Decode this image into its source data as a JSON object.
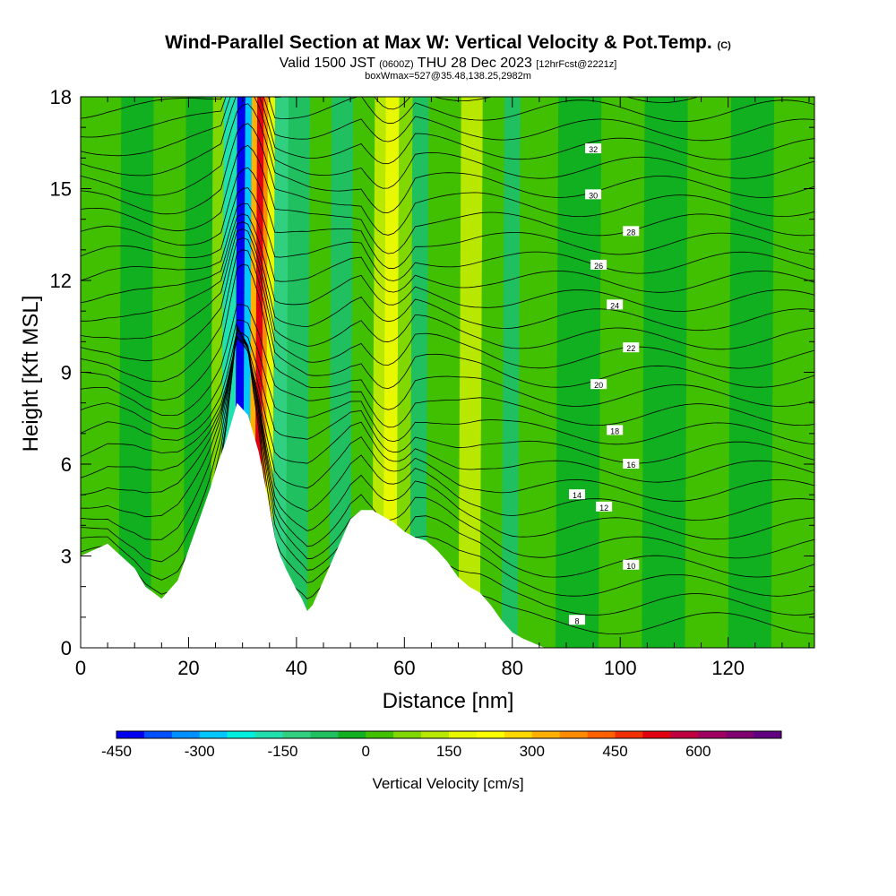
{
  "titles": {
    "main": "Wind-Parallel Section at Max W: Vertical Velocity & Pot.Temp.",
    "main_mark": "(C)",
    "valid_pre": "Valid 1500 JST",
    "valid_utc": "(0600Z)",
    "valid_post": "THU 28 Dec 2023",
    "valid_fcst": "[12hrFcst@2221z]",
    "box": "boxWmax=527@35.48,138.25,2982m"
  },
  "chart_data": {
    "type": "heatmap",
    "xlabel": "Distance [nm]",
    "ylabel": "Height [Kft MSL]",
    "xlim": [
      0,
      136
    ],
    "ylim": [
      0,
      18
    ],
    "xticks": [
      "0",
      "20",
      "40",
      "60",
      "80",
      "100",
      "120"
    ],
    "yticks": [
      "0",
      "3",
      "6",
      "9",
      "12",
      "15",
      "18"
    ],
    "grid": false,
    "legend": "bottom",
    "colorbar": {
      "label": "Vertical Velocity [cm/s]",
      "tick_labels": [
        "-450",
        "-300",
        "-150",
        "0",
        "150",
        "300",
        "450",
        "600"
      ],
      "colors": [
        "#0000f0",
        "#0050ff",
        "#0090ff",
        "#00c8ff",
        "#00f0e0",
        "#20e0b0",
        "#30d080",
        "#20c060",
        "#10b020",
        "#40c000",
        "#80d800",
        "#b8e800",
        "#e8f800",
        "#ffff00",
        "#ffd800",
        "#ffb000",
        "#ff8c00",
        "#ff6000",
        "#f03000",
        "#e00010",
        "#c00040",
        "#a00060",
        "#800070",
        "#600080"
      ]
    },
    "potential_temperature_labels": [
      "32",
      "30",
      "28",
      "26",
      "24",
      "22",
      "20",
      "18",
      "16",
      "14",
      "12",
      "10",
      "8"
    ],
    "terrain_kft": {
      "x": [
        0,
        5,
        10,
        12,
        15,
        18,
        20,
        22,
        24,
        25,
        27,
        29,
        31,
        33,
        35,
        36,
        37,
        38,
        40,
        41,
        42,
        43,
        44,
        46,
        48,
        50,
        52,
        54,
        56,
        58,
        60,
        62,
        64,
        66,
        68,
        70,
        72,
        74,
        76,
        78,
        80,
        82,
        84,
        86
      ],
      "y": [
        3.0,
        3.4,
        2.6,
        2.0,
        1.6,
        2.2,
        3.2,
        4.2,
        5.2,
        5.8,
        6.8,
        8.0,
        7.6,
        6.4,
        4.6,
        3.6,
        3.0,
        2.6,
        1.9,
        1.6,
        1.2,
        1.4,
        1.8,
        2.6,
        3.4,
        4.2,
        4.5,
        4.5,
        4.3,
        4.1,
        3.8,
        3.6,
        3.5,
        3.2,
        2.8,
        2.3,
        2.0,
        1.8,
        1.4,
        0.9,
        0.5,
        0.3,
        0.15,
        0.0
      ]
    },
    "shading_bands": [
      {
        "x0": 0,
        "x1": 7,
        "w": 10
      },
      {
        "x0": 7,
        "x1": 13,
        "w": -30
      },
      {
        "x0": 13,
        "x1": 19,
        "w": 20
      },
      {
        "x0": 19,
        "x1": 24,
        "w": -40
      },
      {
        "x0": 24,
        "x1": 26,
        "w": 60
      },
      {
        "x0": 26,
        "x1": 28.5,
        "w": -180
      },
      {
        "x0": 28.5,
        "x1": 30,
        "w": -420
      },
      {
        "x0": 30,
        "x1": 31.2,
        "w": -300
      },
      {
        "x0": 31.2,
        "x1": 32.2,
        "w": 300
      },
      {
        "x0": 32.2,
        "x1": 33.4,
        "w": 500
      },
      {
        "x0": 33.4,
        "x1": 34.2,
        "w": 380
      },
      {
        "x0": 34.2,
        "x1": 35.5,
        "w": 150
      },
      {
        "x0": 35.5,
        "x1": 38,
        "w": -150
      },
      {
        "x0": 38,
        "x1": 42,
        "w": -60
      },
      {
        "x0": 42,
        "x1": 46,
        "w": 20
      },
      {
        "x0": 46,
        "x1": 50,
        "w": -70
      },
      {
        "x0": 50,
        "x1": 54,
        "w": 40
      },
      {
        "x0": 54,
        "x1": 56,
        "w": 100
      },
      {
        "x0": 56,
        "x1": 58.5,
        "w": 150
      },
      {
        "x0": 58.5,
        "x1": 61,
        "w": 70
      },
      {
        "x0": 61,
        "x1": 64,
        "w": -70
      },
      {
        "x0": 64,
        "x1": 70,
        "w": 40
      },
      {
        "x0": 70,
        "x1": 74,
        "w": 110
      },
      {
        "x0": 74,
        "x1": 78,
        "w": 20
      },
      {
        "x0": 78,
        "x1": 81,
        "w": -70
      },
      {
        "x0": 81,
        "x1": 88,
        "w": 30
      },
      {
        "x0": 88,
        "x1": 96,
        "w": -20
      },
      {
        "x0": 96,
        "x1": 104,
        "w": 40
      },
      {
        "x0": 104,
        "x1": 112,
        "w": -10
      },
      {
        "x0": 112,
        "x1": 120,
        "w": 30
      },
      {
        "x0": 120,
        "x1": 128,
        "w": -20
      },
      {
        "x0": 128,
        "x1": 136,
        "w": 20
      }
    ]
  }
}
